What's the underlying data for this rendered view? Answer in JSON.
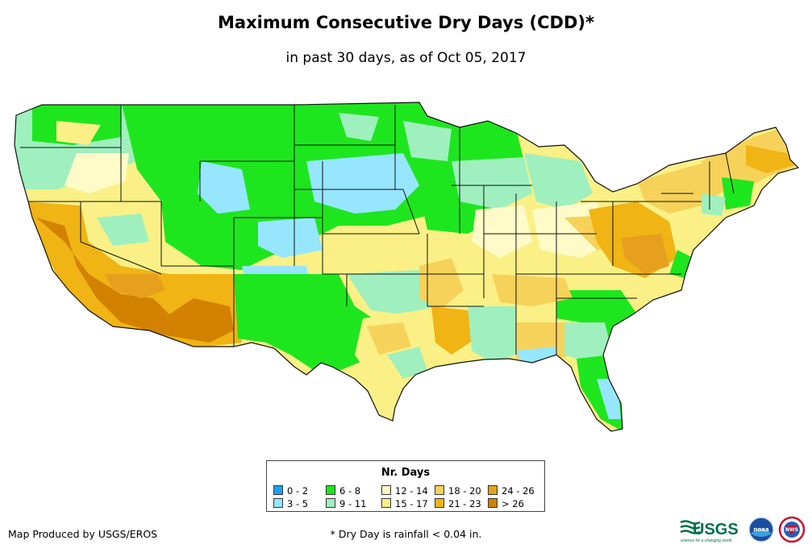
{
  "title": "Maximum Consecutive Dry Days (CDD)*",
  "subtitle": "in past 30 days, as of Oct 05, 2017",
  "legend": {
    "title": "Nr. Days",
    "items": [
      {
        "label": "0 - 2",
        "color": "#1ea0f0"
      },
      {
        "label": "3 - 5",
        "color": "#96e6ff"
      },
      {
        "label": "6 - 8",
        "color": "#1ee61e"
      },
      {
        "label": "9 - 11",
        "color": "#9ff0be"
      },
      {
        "label": "12 - 14",
        "color": "#fffbc8"
      },
      {
        "label": "15 - 17",
        "color": "#faf086"
      },
      {
        "label": "18 - 20",
        "color": "#f6d25a"
      },
      {
        "label": "21 - 23",
        "color": "#f0b414"
      },
      {
        "label": "24 - 26",
        "color": "#e6a01e"
      },
      {
        "label": "> 26",
        "color": "#d28200"
      }
    ]
  },
  "credit": "Map Produced by USGS/EROS",
  "footnote": "* Dry Day is rainfall < 0.04 in.",
  "logos": {
    "usgs": "USGS",
    "usgs_tagline": "science for a changing world",
    "noaa": "noaa",
    "nws": "NWS"
  }
}
